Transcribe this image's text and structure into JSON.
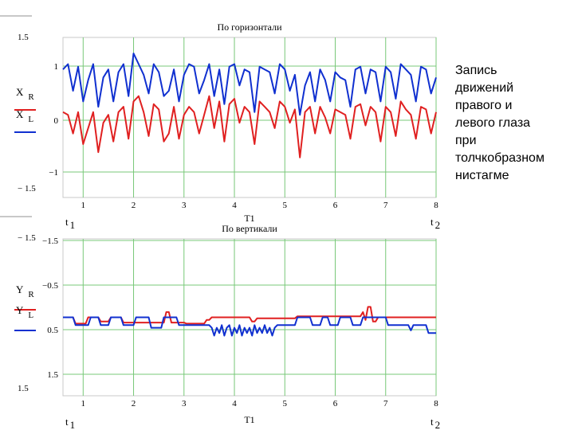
{
  "caption": [
    "Запись",
    "движений",
    "правого и",
    "левого глаза",
    "при",
    "толчкобразном",
    "нистагме"
  ],
  "colors": {
    "right_eye": "#e02020",
    "left_eye": "#1030d0",
    "grid": "#78c878",
    "axis": "#000000",
    "frame": "#c8c8c8"
  },
  "chart_data": [
    {
      "type": "line",
      "title": "По горизонтали",
      "xlabel": "T1",
      "x_start_label": "t 1",
      "x_end_label": "t 2",
      "xlim": [
        0.6,
        8
      ],
      "ylim": [
        1.5,
        -1.5
      ],
      "x_ticks": [
        "1",
        "2",
        "3",
        "4",
        "5",
        "6",
        "7",
        "8"
      ],
      "y_ticks": [
        "1",
        "0",
        "−1"
      ],
      "outer_labels": [
        "1.5",
        "− 1.5"
      ],
      "legend": [
        {
          "label": "X R",
          "main": "X",
          "sub": "R",
          "color": "#e02020"
        },
        {
          "label": "X L",
          "main": "X",
          "sub": "L",
          "color": "#1030d0"
        }
      ],
      "series": [
        {
          "name": "X R",
          "color": "#e02020",
          "x": [
            0.6,
            0.7,
            0.8,
            0.9,
            1.0,
            1.1,
            1.2,
            1.3,
            1.4,
            1.5,
            1.6,
            1.7,
            1.8,
            1.9,
            2.0,
            2.1,
            2.2,
            2.3,
            2.4,
            2.5,
            2.6,
            2.7,
            2.8,
            2.9,
            3.0,
            3.1,
            3.2,
            3.3,
            3.4,
            3.5,
            3.6,
            3.7,
            3.8,
            3.9,
            4.0,
            4.1,
            4.2,
            4.3,
            4.4,
            4.5,
            4.6,
            4.7,
            4.8,
            4.9,
            5.0,
            5.1,
            5.2,
            5.3,
            5.4,
            5.5,
            5.6,
            5.7,
            5.8,
            5.9,
            6.0,
            6.1,
            6.2,
            6.3,
            6.4,
            6.5,
            6.6,
            6.7,
            6.8,
            6.9,
            7.0,
            7.1,
            7.2,
            7.3,
            7.4,
            7.5,
            7.6,
            7.7,
            7.8,
            7.9,
            8.0
          ],
          "values": [
            0.1,
            0.05,
            -0.3,
            0.1,
            -0.5,
            -0.2,
            0.1,
            -0.65,
            -0.1,
            0.05,
            -0.45,
            0.1,
            0.2,
            -0.4,
            0.3,
            0.4,
            0.1,
            -0.35,
            0.25,
            0.15,
            -0.45,
            -0.3,
            0.2,
            -0.4,
            0.05,
            0.2,
            0.1,
            -0.3,
            0.05,
            0.4,
            -0.2,
            0.3,
            -0.45,
            0.25,
            0.35,
            -0.1,
            0.2,
            0.1,
            -0.5,
            0.3,
            0.2,
            0.1,
            -0.2,
            0.3,
            0.2,
            -0.1,
            0.15,
            -0.75,
            0.1,
            0.2,
            -0.3,
            0.2,
            0.0,
            -0.3,
            0.15,
            0.1,
            0.05,
            -0.4,
            0.2,
            0.25,
            -0.15,
            0.2,
            0.1,
            -0.45,
            0.2,
            0.1,
            -0.35,
            0.3,
            0.15,
            0.05,
            -0.4,
            0.2,
            0.15,
            -0.3,
            0.1
          ]
        },
        {
          "name": "X L",
          "color": "#1030d0",
          "x": [
            0.6,
            0.7,
            0.8,
            0.9,
            1.0,
            1.1,
            1.2,
            1.3,
            1.4,
            1.5,
            1.6,
            1.7,
            1.8,
            1.9,
            2.0,
            2.1,
            2.2,
            2.3,
            2.4,
            2.5,
            2.6,
            2.7,
            2.8,
            2.9,
            3.0,
            3.1,
            3.2,
            3.3,
            3.4,
            3.5,
            3.6,
            3.7,
            3.8,
            3.9,
            4.0,
            4.1,
            4.2,
            4.3,
            4.4,
            4.5,
            4.6,
            4.7,
            4.8,
            4.9,
            5.0,
            5.1,
            5.2,
            5.3,
            5.4,
            5.5,
            5.6,
            5.7,
            5.8,
            5.9,
            6.0,
            6.1,
            6.2,
            6.3,
            6.4,
            6.5,
            6.6,
            6.7,
            6.8,
            6.9,
            7.0,
            7.1,
            7.2,
            7.3,
            7.4,
            7.5,
            7.6,
            7.7,
            7.8,
            7.9,
            8.0
          ],
          "values": [
            0.9,
            1.0,
            0.5,
            0.95,
            0.3,
            0.7,
            1.0,
            0.2,
            0.75,
            0.9,
            0.3,
            0.85,
            1.0,
            0.4,
            1.2,
            1.0,
            0.8,
            0.45,
            1.0,
            0.85,
            0.4,
            0.5,
            0.9,
            0.3,
            0.8,
            1.0,
            0.95,
            0.45,
            0.7,
            1.0,
            0.4,
            0.9,
            0.25,
            0.95,
            1.0,
            0.6,
            0.9,
            0.85,
            0.1,
            0.95,
            0.9,
            0.85,
            0.45,
            1.0,
            0.9,
            0.5,
            0.8,
            0.05,
            0.6,
            0.85,
            0.3,
            0.9,
            0.7,
            0.3,
            0.85,
            0.75,
            0.7,
            0.2,
            0.9,
            0.95,
            0.45,
            0.9,
            0.85,
            0.3,
            0.95,
            0.85,
            0.35,
            1.0,
            0.9,
            0.8,
            0.3,
            0.95,
            0.9,
            0.45,
            0.75
          ]
        }
      ]
    },
    {
      "type": "line",
      "title": "По вертикали",
      "xlabel": "T1",
      "x_start_label": "t 1",
      "x_end_label": "t 2",
      "xlim": [
        0.6,
        8
      ],
      "ylim": [
        -1.5,
        1.5
      ],
      "x_ticks": [
        "1",
        "2",
        "3",
        "4",
        "5",
        "6",
        "7",
        "8"
      ],
      "y_ticks": [
        "−1.5",
        "−0.5",
        "0.5",
        "1.5"
      ],
      "outer_labels": [
        "− 1.5",
        "1.5"
      ],
      "legend": [
        {
          "label": "Y R",
          "main": "Y",
          "sub": "R",
          "color": "#e02020"
        },
        {
          "label": "Y L",
          "main": "Y",
          "sub": "L",
          "color": "#1030d0"
        }
      ],
      "series": [
        {
          "name": "Y R",
          "color": "#e02020",
          "x": [
            0.6,
            0.8,
            0.85,
            1.05,
            1.1,
            1.3,
            1.35,
            1.5,
            1.55,
            1.75,
            1.8,
            2.6,
            2.65,
            2.7,
            2.75,
            3.0,
            3.05,
            3.4,
            3.45,
            3.5,
            3.55,
            4.3,
            4.35,
            4.4,
            4.45,
            5.2,
            5.25,
            6.5,
            6.55,
            6.6,
            6.65,
            6.7,
            6.75,
            6.8,
            6.85,
            8.0
          ],
          "values": [
            0.0,
            0.0,
            0.12,
            0.12,
            0.0,
            0.0,
            0.08,
            0.08,
            0.0,
            0.0,
            0.1,
            0.1,
            -0.1,
            -0.1,
            0.1,
            0.1,
            0.12,
            0.12,
            0.05,
            0.05,
            0.0,
            0.0,
            0.08,
            0.08,
            0.02,
            0.02,
            -0.02,
            -0.02,
            -0.1,
            0.05,
            -0.2,
            -0.2,
            0.08,
            0.08,
            0.0,
            0.0
          ]
        },
        {
          "name": "Y L",
          "color": "#1030d0",
          "x": [
            0.6,
            0.8,
            0.85,
            1.1,
            1.15,
            1.3,
            1.35,
            1.5,
            1.55,
            1.75,
            1.8,
            2.0,
            2.05,
            2.3,
            2.35,
            2.55,
            2.6,
            2.85,
            2.9,
            3.5,
            3.55,
            3.6,
            3.65,
            3.7,
            3.75,
            3.8,
            3.85,
            3.9,
            3.95,
            4.0,
            4.05,
            4.1,
            4.15,
            4.2,
            4.25,
            4.3,
            4.35,
            4.4,
            4.45,
            4.5,
            4.55,
            4.6,
            4.65,
            4.7,
            4.75,
            4.8,
            4.85,
            5.2,
            5.25,
            5.5,
            5.55,
            5.7,
            5.75,
            5.85,
            5.9,
            6.05,
            6.1,
            6.3,
            6.35,
            6.5,
            6.55,
            7.0,
            7.05,
            7.45,
            7.5,
            7.55,
            7.6,
            7.8,
            7.85,
            8.0
          ],
          "values": [
            0.0,
            0.0,
            0.15,
            0.15,
            0.0,
            0.0,
            0.15,
            0.15,
            0.0,
            0.0,
            0.15,
            0.15,
            0.0,
            0.0,
            0.2,
            0.2,
            0.0,
            0.0,
            0.15,
            0.15,
            0.2,
            0.35,
            0.2,
            0.3,
            0.15,
            0.35,
            0.2,
            0.15,
            0.35,
            0.2,
            0.3,
            0.15,
            0.35,
            0.2,
            0.3,
            0.2,
            0.35,
            0.15,
            0.3,
            0.2,
            0.3,
            0.15,
            0.3,
            0.2,
            0.35,
            0.2,
            0.15,
            0.15,
            0.0,
            0.0,
            0.15,
            0.15,
            0.0,
            0.0,
            0.15,
            0.15,
            0.0,
            0.0,
            0.15,
            0.15,
            0.0,
            0.0,
            0.15,
            0.15,
            0.25,
            0.15,
            0.15,
            0.15,
            0.3,
            0.3
          ]
        }
      ]
    }
  ]
}
